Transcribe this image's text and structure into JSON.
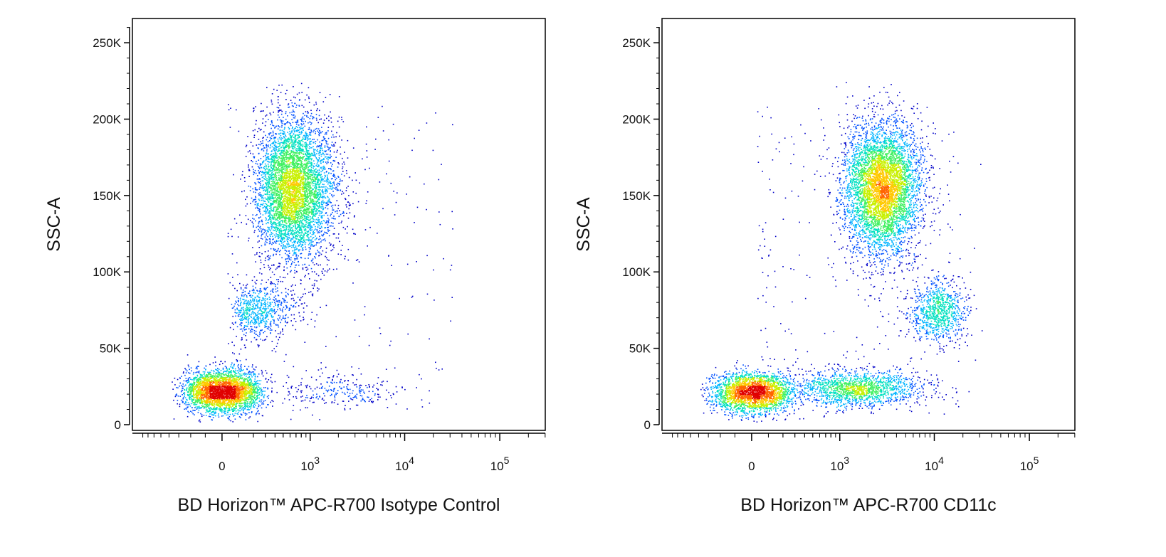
{
  "chart_data": [
    {
      "type": "scatter",
      "subtype": "flow-cytometry-density-dot-plot",
      "title": "",
      "xlabel": "BD Horizon™ APC-R700 Isotype Control",
      "ylabel": "SSC-A",
      "x_scale": "biexponential",
      "x_tick_labels": [
        "0",
        "10^3",
        "10^4",
        "10^5"
      ],
      "x_tick_values": [
        0,
        1000,
        10000,
        100000
      ],
      "y_tick_labels": [
        "0",
        "50K",
        "100K",
        "150K",
        "200K",
        "250K"
      ],
      "y_tick_values": [
        0,
        50000,
        100000,
        150000,
        200000,
        250000
      ],
      "ylim": [
        0,
        262144
      ],
      "grid": false,
      "populations": [
        {
          "name": "",
          "x_center": 0,
          "y_center": 22000,
          "x_spread_decades": 0.22,
          "y_spread": 7000,
          "events": 3200
        },
        {
          "name": "",
          "x_center": 650,
          "y_center": 155000,
          "x_spread_decades": 0.22,
          "y_spread": 23000,
          "events": 5200
        },
        {
          "name": "",
          "x_center": 250,
          "y_center": 75000,
          "x_spread_decades": 0.25,
          "y_spread": 9000,
          "events": 700
        },
        {
          "name": "",
          "x_center": 2000,
          "y_center": 22000,
          "x_spread_decades": 0.3,
          "y_spread": 6000,
          "events": 250
        }
      ]
    },
    {
      "type": "scatter",
      "subtype": "flow-cytometry-density-dot-plot",
      "title": "",
      "xlabel": "BD Horizon™ APC-R700 CD11c",
      "ylabel": "SSC-A",
      "x_scale": "biexponential",
      "x_tick_labels": [
        "0",
        "10^3",
        "10^4",
        "10^5"
      ],
      "x_tick_values": [
        0,
        1000,
        10000,
        100000
      ],
      "y_tick_labels": [
        "0",
        "50K",
        "100K",
        "150K",
        "200K",
        "250K"
      ],
      "y_tick_values": [
        0,
        50000,
        100000,
        150000,
        200000,
        250000
      ],
      "ylim": [
        0,
        262144
      ],
      "grid": false,
      "populations": [
        {
          "name": "",
          "x_center": 0,
          "y_center": 21000,
          "x_spread_decades": 0.2,
          "y_spread": 6500,
          "events": 2600
        },
        {
          "name": "",
          "x_center": 2800,
          "y_center": 155000,
          "x_spread_decades": 0.2,
          "y_spread": 22000,
          "events": 5200
        },
        {
          "name": "",
          "x_center": 11000,
          "y_center": 74000,
          "x_spread_decades": 0.15,
          "y_spread": 10000,
          "events": 900
        },
        {
          "name": "",
          "x_center": 1500,
          "y_center": 24000,
          "x_spread_decades": 0.35,
          "y_spread": 6000,
          "events": 1600
        }
      ]
    }
  ],
  "colormap": [
    "#0000c8",
    "#0050ff",
    "#00b4ff",
    "#00e0c0",
    "#40f060",
    "#c8f000",
    "#ffc800",
    "#ff6400",
    "#e00000"
  ]
}
